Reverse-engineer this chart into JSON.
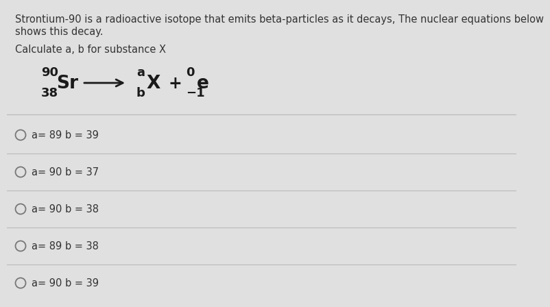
{
  "bg_color": "#e0e0e0",
  "header_text1": "Strontium-90 is a radioactive isotope that emits beta-particles as it decays, The nuclear equations below",
  "header_text2": "shows this decay.",
  "subheader": "Calculate a, b for substance X",
  "options": [
    "a= 89 b = 39",
    "a= 90 b = 37",
    "a= 90 b = 38",
    "a= 89 b = 38",
    "a= 90 b = 39"
  ],
  "text_color": "#333333",
  "line_color": "#bbbbbb",
  "circle_color": "#777777",
  "equation_color": "#1a1a1a",
  "header_fontsize": 10.5,
  "subheader_fontsize": 10.5,
  "option_fontsize": 10.5,
  "eq_super_fontsize": 13,
  "eq_main_fontsize": 19,
  "eq_label_fontsize": 13
}
